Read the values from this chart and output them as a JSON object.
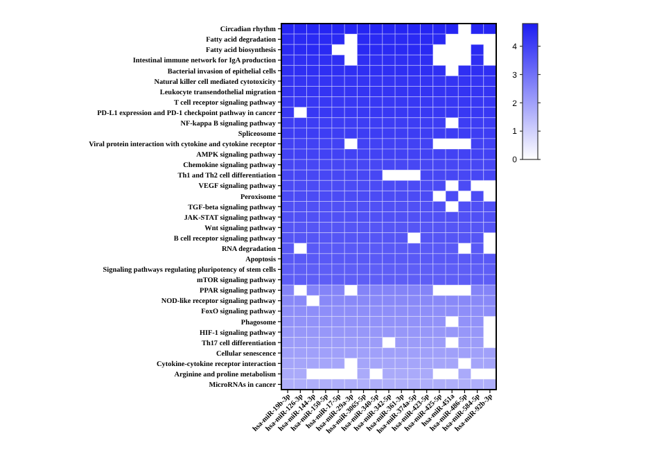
{
  "chart_data": {
    "type": "heatmap",
    "categories": [
      "hsa-miR-19b-3p",
      "hsa-miR-126-3p",
      "hsa-miR-144-3p",
      "hsa-miR-150-5p",
      "hsa-miR-17-5p",
      "hsa-miR-29a-3p",
      "hsa-miR-3065-5p",
      "hsa-miR-340-5p",
      "hsa-miR-342-5p",
      "hsa-miR-361-3p",
      "hsa-miR-374a-5p",
      "hsa-miR-423-5p",
      "hsa-miR-425-5p",
      "hsa-miR-451a",
      "hsa-miR-486-5p",
      "hsa-miR-584-5p",
      "hsa-miR-92b-3p"
    ],
    "y_categories": [
      "Circadian rhythm",
      "Fatty acid degradation",
      "Fatty acid biosynthesis",
      "Intestinal immune network for IgA production",
      "Bacterial invasion of epithelial cells",
      "Natural killer cell mediated cytotoxicity",
      "Leukocyte transendothelial migration",
      "T cell receptor signaling pathway",
      "PD-L1 expression and PD-1 checkpoint pathway in cancer",
      "NF-kappa B signaling pathway",
      "Spliceosome",
      "Viral protein interaction with cytokine and cytokine receptor",
      "AMPK signaling pathway",
      "Chemokine signaling pathway",
      "Th1 and Th2 cell differentiation",
      "VEGF signaling pathway",
      "Peroxisome",
      "TGF-beta signaling pathway",
      "JAK-STAT signaling pathway",
      "Wnt signaling pathway",
      "B cell receptor signaling pathway",
      "RNA degradation",
      "Apoptosis",
      "Signaling pathways regulating pluripotency of stem cells",
      "mTOR signaling pathway",
      "PPAR signaling pathway",
      "NOD-like receptor signaling pathway",
      "FoxO signaling pathway",
      "Phagosome",
      "HIF-1 signaling pathway",
      "Th17 cell differentiation",
      "Cellular senescence",
      "Cytokine-cytokine receptor interaction",
      "Arginine and proline metabolism",
      "MicroRNAs in cancer"
    ],
    "cells": [
      [
        4.6,
        4.6,
        4.6,
        4.6,
        4.6,
        4.6,
        4.6,
        4.6,
        4.6,
        4.6,
        4.6,
        4.6,
        4.6,
        4.6,
        null,
        4.6,
        4.6
      ],
      [
        4.5,
        4.5,
        4.5,
        4.5,
        4.5,
        null,
        4.5,
        4.5,
        4.5,
        4.5,
        4.5,
        4.5,
        4.5,
        null,
        null,
        null,
        null
      ],
      [
        4.5,
        4.5,
        4.5,
        4.5,
        null,
        null,
        4.5,
        4.5,
        4.5,
        4.5,
        4.5,
        4.5,
        null,
        null,
        null,
        4.5,
        null
      ],
      [
        4.4,
        4.4,
        4.4,
        4.4,
        4.4,
        null,
        4.4,
        4.4,
        4.4,
        4.4,
        4.4,
        4.4,
        null,
        null,
        null,
        4.4,
        null
      ],
      [
        4.4,
        4.4,
        4.4,
        4.4,
        4.4,
        4.4,
        4.4,
        4.4,
        4.4,
        4.4,
        4.4,
        4.4,
        4.4,
        null,
        4.4,
        4.4,
        4.4
      ],
      [
        4.3,
        4.3,
        4.3,
        4.3,
        4.3,
        4.3,
        4.3,
        4.3,
        4.3,
        4.3,
        4.3,
        4.3,
        4.3,
        4.3,
        4.3,
        4.3,
        4.3
      ],
      [
        4.3,
        4.3,
        4.3,
        4.3,
        4.3,
        4.3,
        4.3,
        4.3,
        4.3,
        4.3,
        4.3,
        4.3,
        4.3,
        4.3,
        4.3,
        4.3,
        4.3
      ],
      [
        4.2,
        4.2,
        4.2,
        4.2,
        4.2,
        4.2,
        4.2,
        4.2,
        4.2,
        4.2,
        4.2,
        4.2,
        4.2,
        4.2,
        4.2,
        4.2,
        4.2
      ],
      [
        4.2,
        null,
        4.2,
        4.2,
        4.2,
        4.2,
        4.2,
        4.2,
        4.2,
        4.2,
        4.2,
        4.2,
        4.2,
        4.2,
        4.2,
        4.2,
        4.2
      ],
      [
        4.1,
        4.1,
        4.1,
        4.1,
        4.1,
        4.1,
        4.1,
        4.1,
        4.1,
        4.1,
        4.1,
        4.1,
        4.1,
        null,
        4.1,
        4.1,
        4.1
      ],
      [
        4.1,
        4.1,
        4.1,
        4.1,
        4.1,
        4.1,
        4.1,
        4.1,
        4.1,
        4.1,
        4.1,
        4.1,
        4.1,
        4.1,
        4.1,
        4.1,
        4.1
      ],
      [
        4.0,
        4.0,
        4.0,
        4.0,
        4.0,
        null,
        4.0,
        4.0,
        4.0,
        4.0,
        4.0,
        4.0,
        null,
        null,
        null,
        4.0,
        4.0
      ],
      [
        4.0,
        4.0,
        4.0,
        4.0,
        4.0,
        4.0,
        4.0,
        4.0,
        4.0,
        4.0,
        4.0,
        4.0,
        4.0,
        4.0,
        4.0,
        4.0,
        4.0
      ],
      [
        3.9,
        3.9,
        3.9,
        3.9,
        3.9,
        3.9,
        3.9,
        3.9,
        3.9,
        3.9,
        3.9,
        3.9,
        3.9,
        3.9,
        3.9,
        3.9,
        3.9
      ],
      [
        3.9,
        3.9,
        3.9,
        3.9,
        3.9,
        3.9,
        3.9,
        3.9,
        null,
        null,
        null,
        3.9,
        3.9,
        3.9,
        3.9,
        3.9,
        3.9
      ],
      [
        3.8,
        3.8,
        3.8,
        3.8,
        3.8,
        3.8,
        3.8,
        3.8,
        3.8,
        3.8,
        3.8,
        3.8,
        3.8,
        null,
        3.8,
        null,
        null
      ],
      [
        3.8,
        3.8,
        3.8,
        3.8,
        3.8,
        3.8,
        3.8,
        3.8,
        3.8,
        3.8,
        3.8,
        3.8,
        null,
        3.8,
        null,
        3.8,
        null
      ],
      [
        3.7,
        3.7,
        3.7,
        3.7,
        3.7,
        3.7,
        3.7,
        3.7,
        3.7,
        3.7,
        3.7,
        3.7,
        3.7,
        null,
        3.7,
        3.7,
        3.7
      ],
      [
        3.7,
        3.7,
        3.7,
        3.7,
        3.7,
        3.7,
        3.7,
        3.7,
        3.7,
        3.7,
        3.7,
        3.7,
        3.7,
        3.7,
        3.7,
        3.7,
        3.7
      ],
      [
        3.6,
        3.6,
        3.6,
        3.6,
        3.6,
        3.6,
        3.6,
        3.6,
        3.6,
        3.6,
        3.6,
        3.6,
        3.6,
        3.6,
        3.6,
        3.6,
        3.6
      ],
      [
        3.6,
        3.6,
        3.6,
        3.6,
        3.6,
        3.6,
        3.6,
        3.6,
        3.6,
        3.6,
        null,
        3.6,
        3.6,
        3.6,
        3.6,
        3.6,
        null
      ],
      [
        3.5,
        null,
        3.5,
        3.5,
        3.5,
        3.5,
        3.5,
        3.5,
        3.5,
        3.5,
        3.5,
        3.5,
        3.5,
        3.5,
        null,
        3.5,
        null
      ],
      [
        3.5,
        3.5,
        3.5,
        3.5,
        3.5,
        3.5,
        3.5,
        3.5,
        3.5,
        3.5,
        3.5,
        3.5,
        3.5,
        3.5,
        3.5,
        3.5,
        3.5
      ],
      [
        3.4,
        3.4,
        3.4,
        3.4,
        3.4,
        3.4,
        3.4,
        3.4,
        3.4,
        3.4,
        3.4,
        3.4,
        3.4,
        3.4,
        3.4,
        3.4,
        3.4
      ],
      [
        3.4,
        3.4,
        3.4,
        3.4,
        3.4,
        3.4,
        3.4,
        3.4,
        3.4,
        3.4,
        3.4,
        3.4,
        3.4,
        3.4,
        3.4,
        3.4,
        3.4
      ],
      [
        2.6,
        null,
        2.6,
        2.6,
        2.6,
        null,
        2.6,
        2.6,
        2.6,
        2.6,
        2.6,
        2.6,
        null,
        null,
        null,
        2.6,
        2.6
      ],
      [
        2.5,
        2.5,
        null,
        2.5,
        2.5,
        2.5,
        2.5,
        2.5,
        2.5,
        2.5,
        2.5,
        2.5,
        2.5,
        2.5,
        2.5,
        2.5,
        2.5
      ],
      [
        2.4,
        2.4,
        2.4,
        2.4,
        2.4,
        2.4,
        2.4,
        2.4,
        2.4,
        2.4,
        2.4,
        2.4,
        2.4,
        2.4,
        2.4,
        2.4,
        2.4
      ],
      [
        2.3,
        2.3,
        2.3,
        2.3,
        2.3,
        2.3,
        2.3,
        2.3,
        2.3,
        2.3,
        2.3,
        2.3,
        2.3,
        null,
        2.3,
        2.3,
        null
      ],
      [
        2.2,
        2.2,
        2.2,
        2.2,
        2.2,
        2.2,
        2.2,
        2.2,
        2.2,
        2.2,
        2.2,
        2.2,
        2.2,
        2.2,
        2.2,
        2.2,
        null
      ],
      [
        2.1,
        2.1,
        2.1,
        2.1,
        2.1,
        2.1,
        2.1,
        2.1,
        null,
        2.1,
        2.1,
        2.1,
        2.1,
        null,
        2.1,
        2.1,
        null
      ],
      [
        2.0,
        2.0,
        2.0,
        2.0,
        2.0,
        2.0,
        2.0,
        2.0,
        2.0,
        2.0,
        2.0,
        2.0,
        2.0,
        2.0,
        2.0,
        2.0,
        2.0
      ],
      [
        1.9,
        1.9,
        1.9,
        1.9,
        1.9,
        null,
        1.9,
        1.9,
        1.9,
        1.9,
        1.9,
        1.9,
        1.9,
        1.9,
        null,
        1.9,
        1.9
      ],
      [
        1.8,
        1.8,
        null,
        null,
        null,
        null,
        1.8,
        null,
        1.8,
        1.8,
        1.8,
        1.8,
        null,
        null,
        1.8,
        null,
        null
      ],
      [
        1.7,
        1.7,
        1.7,
        1.7,
        1.7,
        1.7,
        1.7,
        1.7,
        1.7,
        1.7,
        1.7,
        1.7,
        1.7,
        1.7,
        1.7,
        1.7,
        1.7
      ]
    ],
    "clim": [
      0,
      4.8
    ],
    "cticks": [
      0,
      1,
      2,
      3,
      4
    ]
  }
}
